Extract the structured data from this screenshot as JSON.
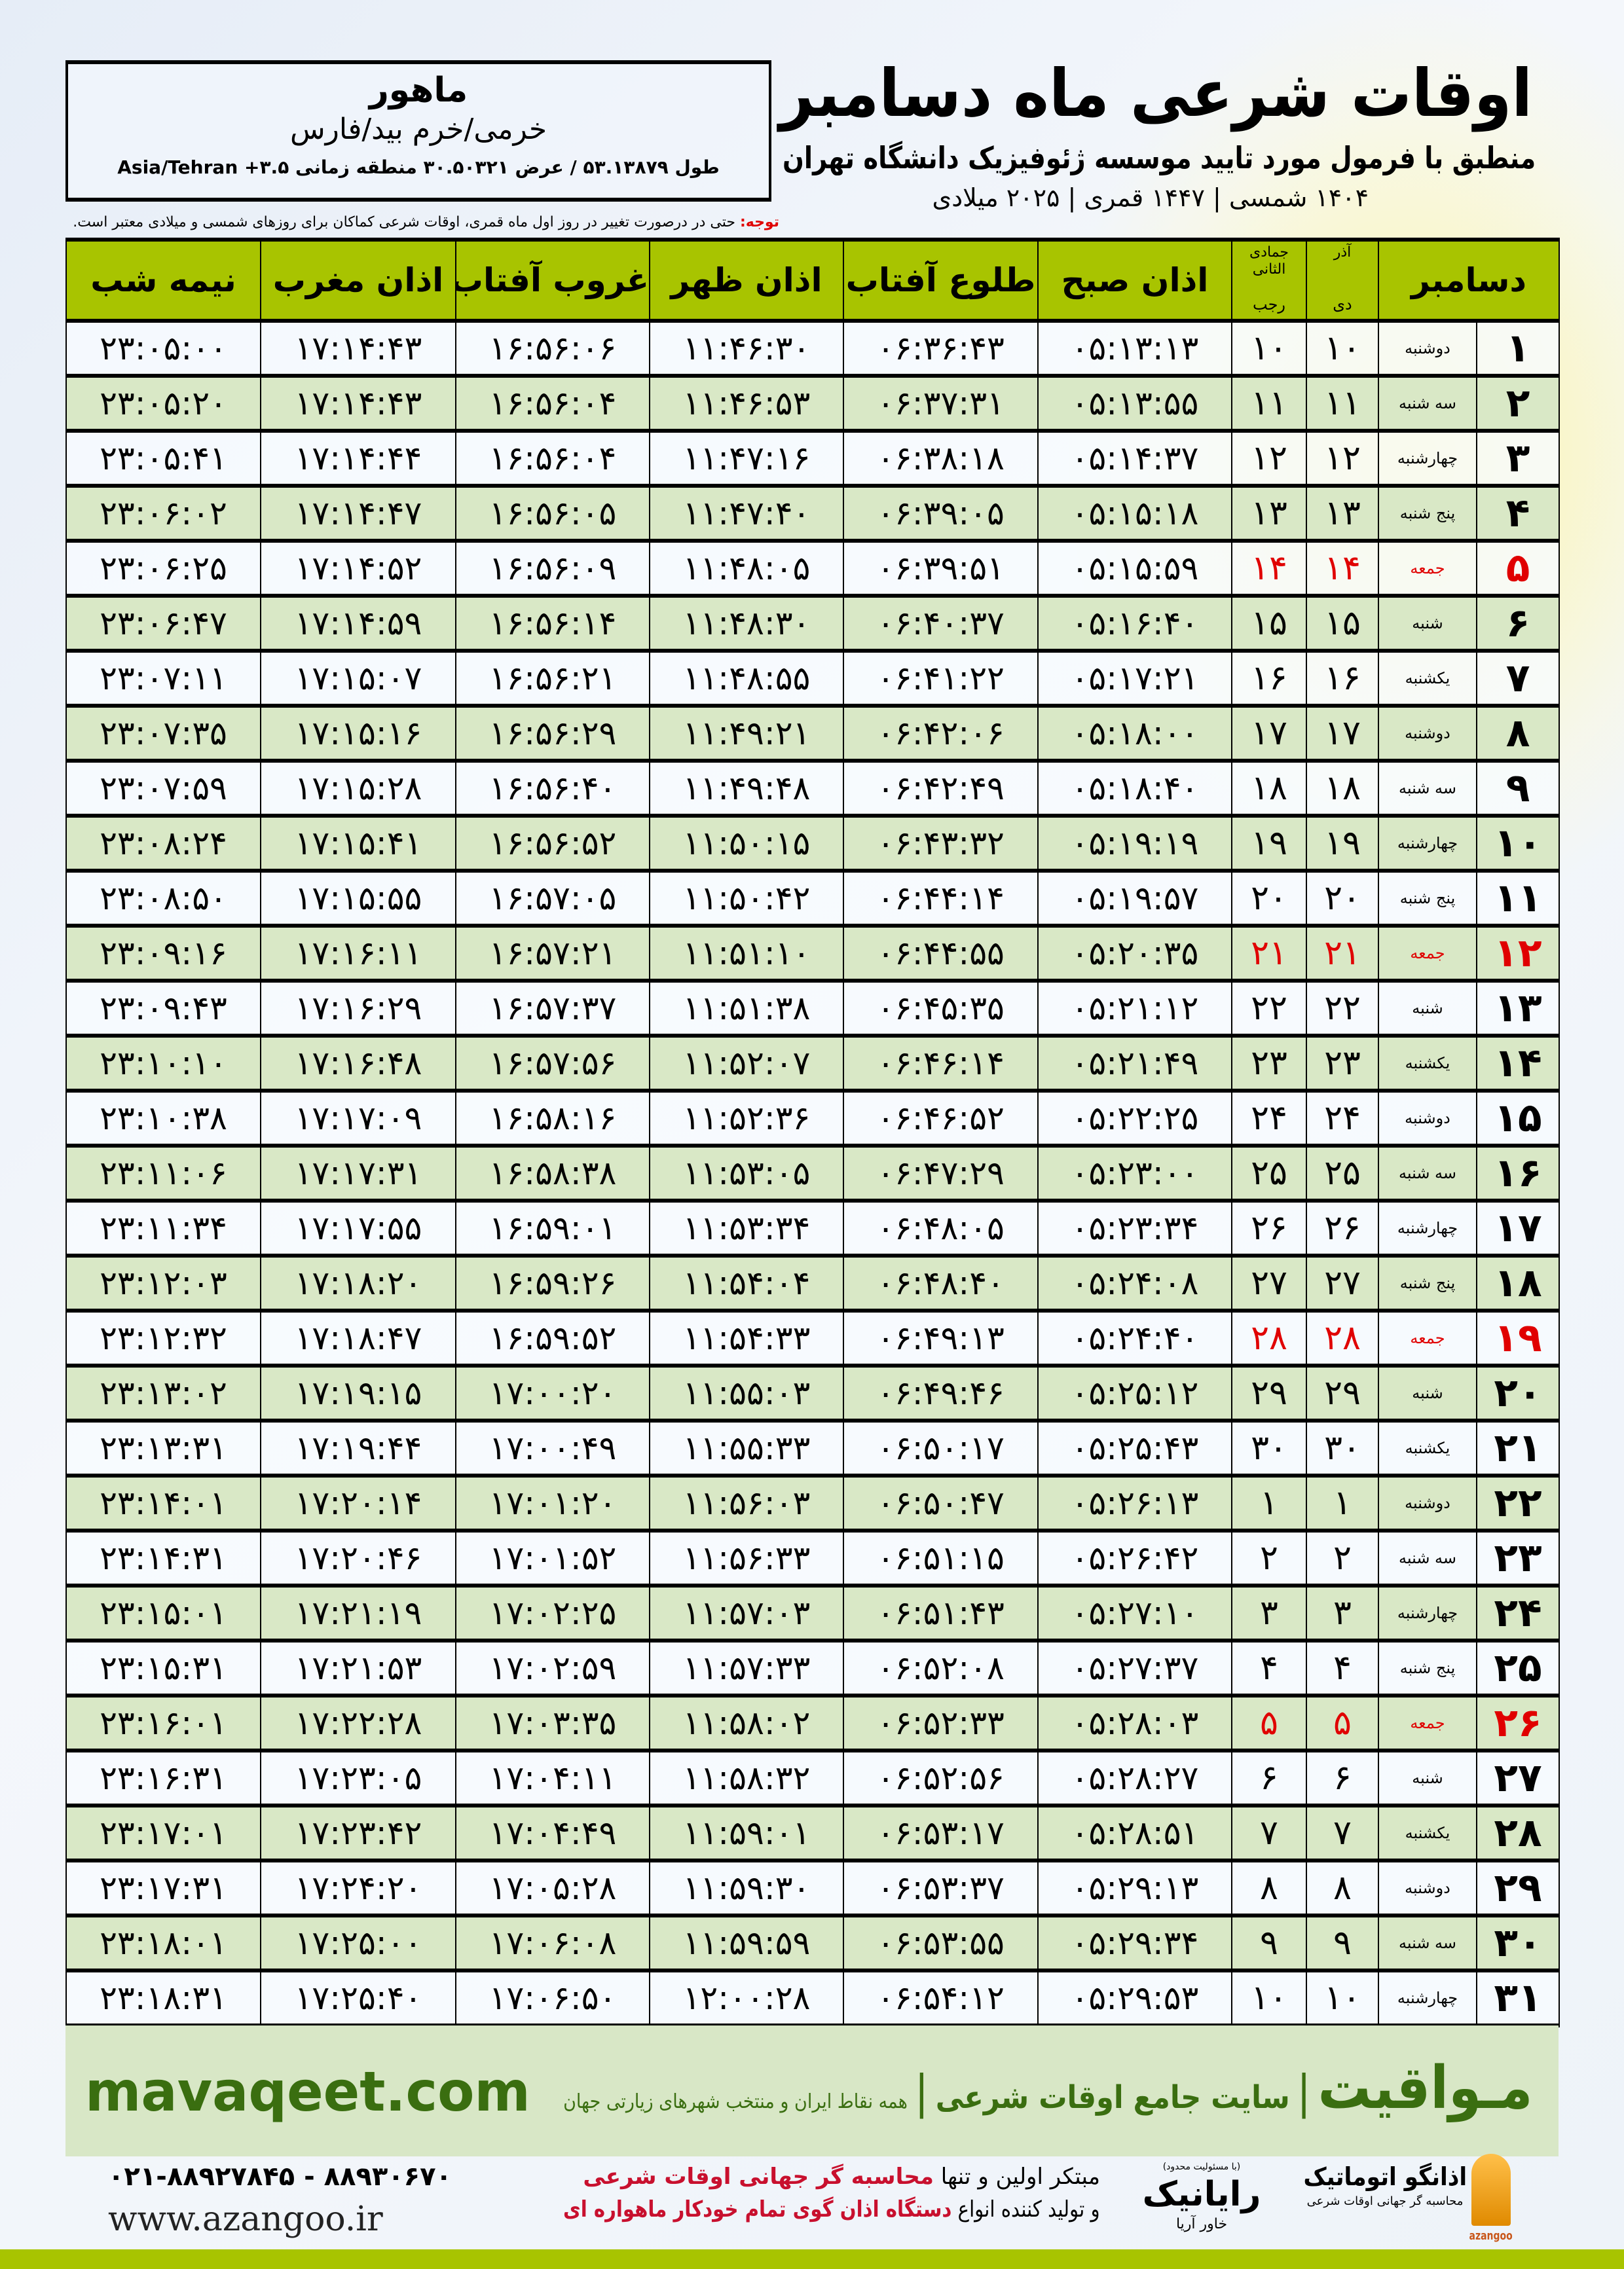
{
  "header": {
    "title": "اوقات شرعی ماه دسامبر",
    "subtitle": "منطبق با فرمول مورد تایید موسسه ژئوفیزیک دانشگاه تهران",
    "dates": "۱۴۰۴ شمسی | ۱۴۴۷ قمری | ۲۰۲۵ میلادی"
  },
  "location": {
    "city": "ماهور",
    "region": "خرمی/خرم بید/فارس",
    "coords": "طول ۵۳.۱۳۸۷۹ / عرض ۳۰.۵۰۳۲۱ منطقه زمانی ۳.۵+ Asia/Tehran"
  },
  "note": {
    "label": "توجه:",
    "text": " حتی در درصورت تغییر در روز اول ماه قمری، اوقات شرعی کماکان برای روزهای شمسی و میلادی معتبر است."
  },
  "table": {
    "headers": {
      "day": "دسامبر",
      "solar_top": "آذر",
      "solar_bottom": "دی",
      "lunar_top": "جمادی الثانی",
      "lunar_bottom": "رجب",
      "fajr": "اذان صبح",
      "sunrise": "طلوع آفتاب",
      "dhuhr": "اذان ظهر",
      "sunset": "غروب آفتاب",
      "maghrib": "اذان مغرب",
      "midnight": "نیمه شب"
    },
    "friday_color": "#e00000",
    "header_color": "#a8c400",
    "rows": [
      [
        "۱",
        "دوشنبه",
        "۱۰",
        "۱۰",
        "۰۵:۱۳:۱۳",
        "۰۶:۳۶:۴۳",
        "۱۱:۴۶:۳۰",
        "۱۶:۵۶:۰۶",
        "۱۷:۱۴:۴۳",
        "۲۳:۰۵:۰۰"
      ],
      [
        "۲",
        "سه شنبه",
        "۱۱",
        "۱۱",
        "۰۵:۱۳:۵۵",
        "۰۶:۳۷:۳۱",
        "۱۱:۴۶:۵۳",
        "۱۶:۵۶:۰۴",
        "۱۷:۱۴:۴۳",
        "۲۳:۰۵:۲۰"
      ],
      [
        "۳",
        "چهارشنبه",
        "۱۲",
        "۱۲",
        "۰۵:۱۴:۳۷",
        "۰۶:۳۸:۱۸",
        "۱۱:۴۷:۱۶",
        "۱۶:۵۶:۰۴",
        "۱۷:۱۴:۴۴",
        "۲۳:۰۵:۴۱"
      ],
      [
        "۴",
        "پنج شنبه",
        "۱۳",
        "۱۳",
        "۰۵:۱۵:۱۸",
        "۰۶:۳۹:۰۵",
        "۱۱:۴۷:۴۰",
        "۱۶:۵۶:۰۵",
        "۱۷:۱۴:۴۷",
        "۲۳:۰۶:۰۲"
      ],
      [
        "۵",
        "جمعه",
        "۱۴",
        "۱۴",
        "۰۵:۱۵:۵۹",
        "۰۶:۳۹:۵۱",
        "۱۱:۴۸:۰۵",
        "۱۶:۵۶:۰۹",
        "۱۷:۱۴:۵۲",
        "۲۳:۰۶:۲۵"
      ],
      [
        "۶",
        "شنبه",
        "۱۵",
        "۱۵",
        "۰۵:۱۶:۴۰",
        "۰۶:۴۰:۳۷",
        "۱۱:۴۸:۳۰",
        "۱۶:۵۶:۱۴",
        "۱۷:۱۴:۵۹",
        "۲۳:۰۶:۴۷"
      ],
      [
        "۷",
        "یکشنبه",
        "۱۶",
        "۱۶",
        "۰۵:۱۷:۲۱",
        "۰۶:۴۱:۲۲",
        "۱۱:۴۸:۵۵",
        "۱۶:۵۶:۲۱",
        "۱۷:۱۵:۰۷",
        "۲۳:۰۷:۱۱"
      ],
      [
        "۸",
        "دوشنبه",
        "۱۷",
        "۱۷",
        "۰۵:۱۸:۰۰",
        "۰۶:۴۲:۰۶",
        "۱۱:۴۹:۲۱",
        "۱۶:۵۶:۲۹",
        "۱۷:۱۵:۱۶",
        "۲۳:۰۷:۳۵"
      ],
      [
        "۹",
        "سه شنبه",
        "۱۸",
        "۱۸",
        "۰۵:۱۸:۴۰",
        "۰۶:۴۲:۴۹",
        "۱۱:۴۹:۴۸",
        "۱۶:۵۶:۴۰",
        "۱۷:۱۵:۲۸",
        "۲۳:۰۷:۵۹"
      ],
      [
        "۱۰",
        "چهارشنبه",
        "۱۹",
        "۱۹",
        "۰۵:۱۹:۱۹",
        "۰۶:۴۳:۳۲",
        "۱۱:۵۰:۱۵",
        "۱۶:۵۶:۵۲",
        "۱۷:۱۵:۴۱",
        "۲۳:۰۸:۲۴"
      ],
      [
        "۱۱",
        "پنج شنبه",
        "۲۰",
        "۲۰",
        "۰۵:۱۹:۵۷",
        "۰۶:۴۴:۱۴",
        "۱۱:۵۰:۴۲",
        "۱۶:۵۷:۰۵",
        "۱۷:۱۵:۵۵",
        "۲۳:۰۸:۵۰"
      ],
      [
        "۱۲",
        "جمعه",
        "۲۱",
        "۲۱",
        "۰۵:۲۰:۳۵",
        "۰۶:۴۴:۵۵",
        "۱۱:۵۱:۱۰",
        "۱۶:۵۷:۲۱",
        "۱۷:۱۶:۱۱",
        "۲۳:۰۹:۱۶"
      ],
      [
        "۱۳",
        "شنبه",
        "۲۲",
        "۲۲",
        "۰۵:۲۱:۱۲",
        "۰۶:۴۵:۳۵",
        "۱۱:۵۱:۳۸",
        "۱۶:۵۷:۳۷",
        "۱۷:۱۶:۲۹",
        "۲۳:۰۹:۴۳"
      ],
      [
        "۱۴",
        "یکشنبه",
        "۲۳",
        "۲۳",
        "۰۵:۲۱:۴۹",
        "۰۶:۴۶:۱۴",
        "۱۱:۵۲:۰۷",
        "۱۶:۵۷:۵۶",
        "۱۷:۱۶:۴۸",
        "۲۳:۱۰:۱۰"
      ],
      [
        "۱۵",
        "دوشنبه",
        "۲۴",
        "۲۴",
        "۰۵:۲۲:۲۵",
        "۰۶:۴۶:۵۲",
        "۱۱:۵۲:۳۶",
        "۱۶:۵۸:۱۶",
        "۱۷:۱۷:۰۹",
        "۲۳:۱۰:۳۸"
      ],
      [
        "۱۶",
        "سه شنبه",
        "۲۵",
        "۲۵",
        "۰۵:۲۳:۰۰",
        "۰۶:۴۷:۲۹",
        "۱۱:۵۳:۰۵",
        "۱۶:۵۸:۳۸",
        "۱۷:۱۷:۳۱",
        "۲۳:۱۱:۰۶"
      ],
      [
        "۱۷",
        "چهارشنبه",
        "۲۶",
        "۲۶",
        "۰۵:۲۳:۳۴",
        "۰۶:۴۸:۰۵",
        "۱۱:۵۳:۳۴",
        "۱۶:۵۹:۰۱",
        "۱۷:۱۷:۵۵",
        "۲۳:۱۱:۳۴"
      ],
      [
        "۱۸",
        "پنج شنبه",
        "۲۷",
        "۲۷",
        "۰۵:۲۴:۰۸",
        "۰۶:۴۸:۴۰",
        "۱۱:۵۴:۰۴",
        "۱۶:۵۹:۲۶",
        "۱۷:۱۸:۲۰",
        "۲۳:۱۲:۰۳"
      ],
      [
        "۱۹",
        "جمعه",
        "۲۸",
        "۲۸",
        "۰۵:۲۴:۴۰",
        "۰۶:۴۹:۱۳",
        "۱۱:۵۴:۳۳",
        "۱۶:۵۹:۵۲",
        "۱۷:۱۸:۴۷",
        "۲۳:۱۲:۳۲"
      ],
      [
        "۲۰",
        "شنبه",
        "۲۹",
        "۲۹",
        "۰۵:۲۵:۱۲",
        "۰۶:۴۹:۴۶",
        "۱۱:۵۵:۰۳",
        "۱۷:۰۰:۲۰",
        "۱۷:۱۹:۱۵",
        "۲۳:۱۳:۰۲"
      ],
      [
        "۲۱",
        "یکشنبه",
        "۳۰",
        "۳۰",
        "۰۵:۲۵:۴۳",
        "۰۶:۵۰:۱۷",
        "۱۱:۵۵:۳۳",
        "۱۷:۰۰:۴۹",
        "۱۷:۱۹:۴۴",
        "۲۳:۱۳:۳۱"
      ],
      [
        "۲۲",
        "دوشنبه",
        "۱",
        "۱",
        "۰۵:۲۶:۱۳",
        "۰۶:۵۰:۴۷",
        "۱۱:۵۶:۰۳",
        "۱۷:۰۱:۲۰",
        "۱۷:۲۰:۱۴",
        "۲۳:۱۴:۰۱"
      ],
      [
        "۲۳",
        "سه شنبه",
        "۲",
        "۲",
        "۰۵:۲۶:۴۲",
        "۰۶:۵۱:۱۵",
        "۱۱:۵۶:۳۳",
        "۱۷:۰۱:۵۲",
        "۱۷:۲۰:۴۶",
        "۲۳:۱۴:۳۱"
      ],
      [
        "۲۴",
        "چهارشنبه",
        "۳",
        "۳",
        "۰۵:۲۷:۱۰",
        "۰۶:۵۱:۴۳",
        "۱۱:۵۷:۰۳",
        "۱۷:۰۲:۲۵",
        "۱۷:۲۱:۱۹",
        "۲۳:۱۵:۰۱"
      ],
      [
        "۲۵",
        "پنج شنبه",
        "۴",
        "۴",
        "۰۵:۲۷:۳۷",
        "۰۶:۵۲:۰۸",
        "۱۱:۵۷:۳۳",
        "۱۷:۰۲:۵۹",
        "۱۷:۲۱:۵۳",
        "۲۳:۱۵:۳۱"
      ],
      [
        "۲۶",
        "جمعه",
        "۵",
        "۵",
        "۰۵:۲۸:۰۳",
        "۰۶:۵۲:۳۳",
        "۱۱:۵۸:۰۲",
        "۱۷:۰۳:۳۵",
        "۱۷:۲۲:۲۸",
        "۲۳:۱۶:۰۱"
      ],
      [
        "۲۷",
        "شنبه",
        "۶",
        "۶",
        "۰۵:۲۸:۲۷",
        "۰۶:۵۲:۵۶",
        "۱۱:۵۸:۳۲",
        "۱۷:۰۴:۱۱",
        "۱۷:۲۳:۰۵",
        "۲۳:۱۶:۳۱"
      ],
      [
        "۲۸",
        "یکشنبه",
        "۷",
        "۷",
        "۰۵:۲۸:۵۱",
        "۰۶:۵۳:۱۷",
        "۱۱:۵۹:۰۱",
        "۱۷:۰۴:۴۹",
        "۱۷:۲۳:۴۲",
        "۲۳:۱۷:۰۱"
      ],
      [
        "۲۹",
        "دوشنبه",
        "۸",
        "۸",
        "۰۵:۲۹:۱۳",
        "۰۶:۵۳:۳۷",
        "۱۱:۵۹:۳۰",
        "۱۷:۰۵:۲۸",
        "۱۷:۲۴:۲۰",
        "۲۳:۱۷:۳۱"
      ],
      [
        "۳۰",
        "سه شنبه",
        "۹",
        "۹",
        "۰۵:۲۹:۳۴",
        "۰۶:۵۳:۵۵",
        "۱۱:۵۹:۵۹",
        "۱۷:۰۶:۰۸",
        "۱۷:۲۵:۰۰",
        "۲۳:۱۸:۰۱"
      ],
      [
        "۳۱",
        "چهارشنبه",
        "۱۰",
        "۱۰",
        "۰۵:۲۹:۵۳",
        "۰۶:۵۴:۱۲",
        "۱۲:۰۰:۲۸",
        "۱۷:۰۶:۵۰",
        "۱۷:۲۵:۴۰",
        "۲۳:۱۸:۳۱"
      ]
    ]
  },
  "footer": {
    "brand": "مـواقیت",
    "separator": "|",
    "tagline": "سایت جامع اوقات شرعی",
    "tagline2": "همه نقاط ایران و منتخب شهرهای زیارتی جهان",
    "site": "mavaqeet.com",
    "phone": "۰۲۱-۸۸۹۲۷۸۴۵ - ۸۸۹۳۰۶۷۰",
    "web": "www.azangoo.ir",
    "ad_line1_plain": "مبتکر اولین و تنها ",
    "ad_line1_red": "محاسبه گر جهانی اوقات شرعی",
    "ad_line2_plain": "و تولید کننده انواع ",
    "ad_line2_red": "دستگاه اذان گوی تمام خودکار ماهواره ای",
    "rayanik_small": "(با مسئولیت محدود)",
    "rayanik_name": "رایانیک",
    "rayanik_sub": "خاور آریا",
    "azangoo_name": "اذانگو اتوماتیک",
    "azangoo_sub": "محاسبه گر جهانی اوقات شرعی",
    "azangoo_en": "azangoo",
    "accent_green": "#3a6e10",
    "accent_red": "#c8102e"
  }
}
